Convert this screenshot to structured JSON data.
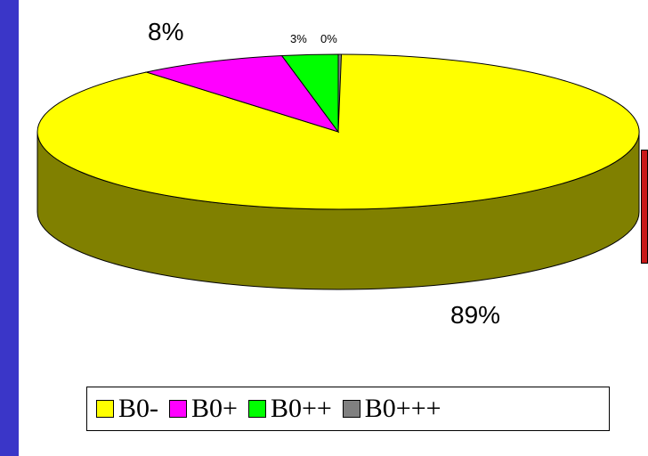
{
  "chart_data": {
    "type": "pie",
    "style": "3d",
    "categories": [
      "B0-",
      "B0+",
      "B0++",
      "B0+++"
    ],
    "values": [
      89,
      8,
      3,
      0
    ],
    "data_labels": [
      "89%",
      "8%",
      "3%",
      "0%"
    ],
    "colors": [
      "#ffff00",
      "#ff00ff",
      "#00ff00",
      "#808080"
    ],
    "side_colors": [
      "#808000",
      "#800080",
      "#008000",
      "#404040"
    ],
    "legend": "bottom",
    "title": ""
  }
}
